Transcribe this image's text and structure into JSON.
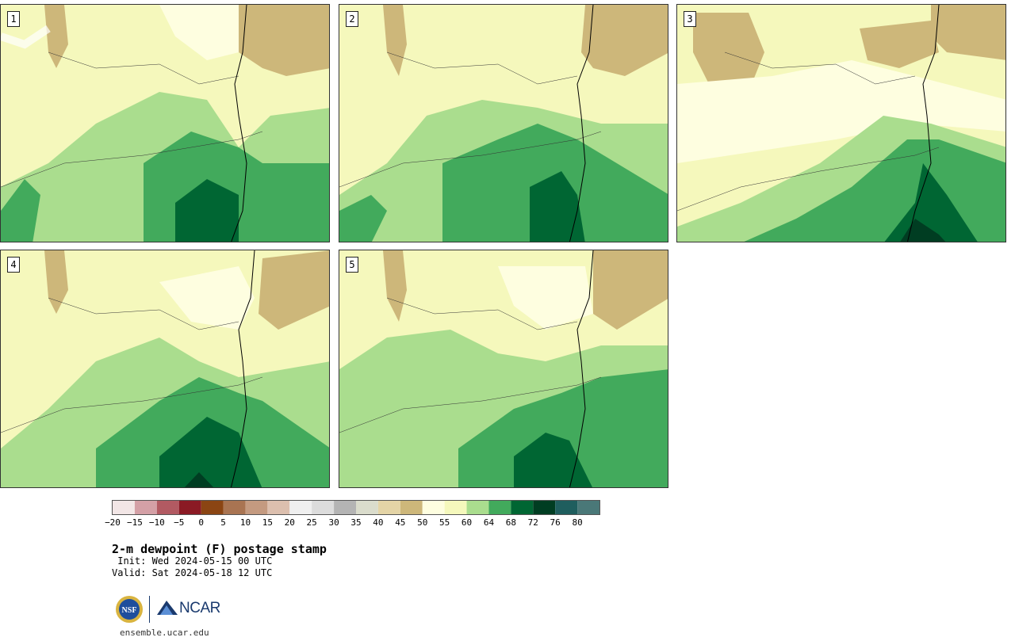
{
  "panels": [
    {
      "label": "1"
    },
    {
      "label": "2"
    },
    {
      "label": "3"
    },
    {
      "label": "4"
    },
    {
      "label": "5"
    }
  ],
  "colorbar": {
    "ticks": [
      "−20",
      "−15",
      "−10",
      "−5",
      "0",
      "5",
      "10",
      "15",
      "20",
      "25",
      "30",
      "35",
      "40",
      "45",
      "50",
      "55",
      "60",
      "64",
      "68",
      "72",
      "76",
      "80"
    ],
    "colors": [
      "#f2e6e6",
      "#d4a0a6",
      "#b25a62",
      "#8b1a24",
      "#8b4513",
      "#a97452",
      "#c49a80",
      "#dcbfae",
      "#efefef",
      "#dcdcdc",
      "#b4b4b4",
      "#dadccc",
      "#e4d4a6",
      "#cdb77a",
      "#fefee0",
      "#f5f8bc",
      "#aadd8e",
      "#42aa5c",
      "#006633",
      "#003d22",
      "#1f5e5e",
      "#4a7878"
    ]
  },
  "title": "2-m dewpoint (F) postage stamp",
  "init": " Init: Wed 2024-05-15 00 UTC",
  "valid": "Valid: Sat 2024-05-18 12 UTC",
  "footer": {
    "nsf_label": "NSF",
    "ncar_label": "NCAR",
    "url": "ensemble.ucar.edu"
  }
}
